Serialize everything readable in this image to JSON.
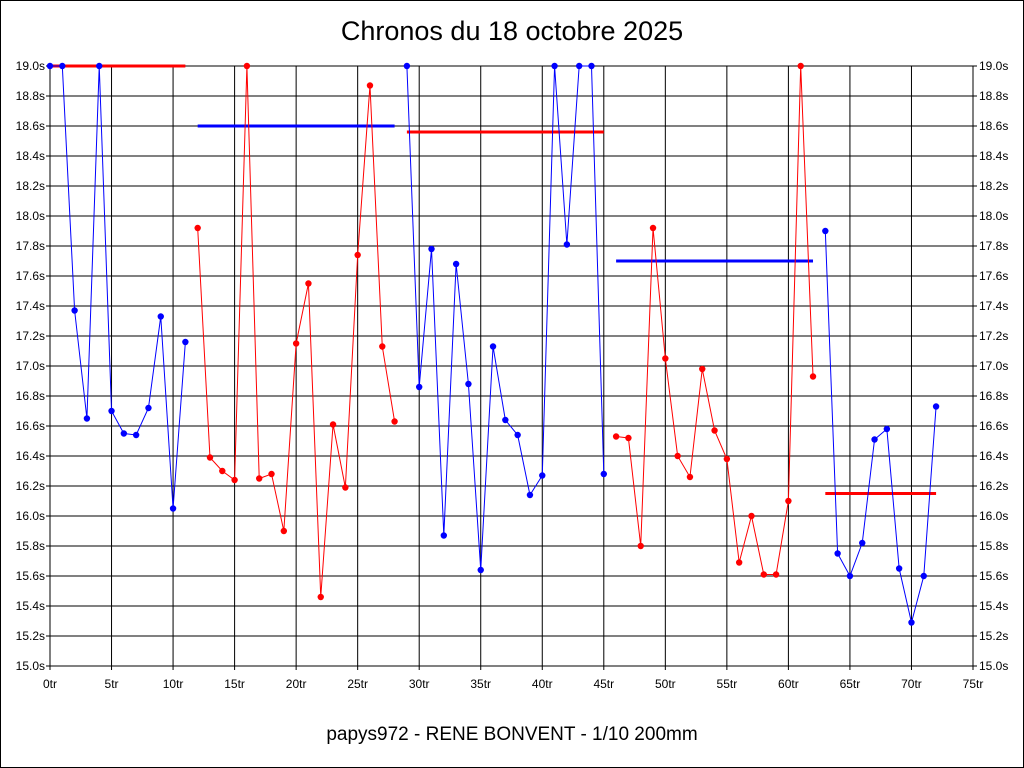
{
  "chart_data": {
    "type": "line",
    "title": "Chronos du 18 octobre 2025",
    "subtitle": "papys972 - RENE BONVENT - 1/10 200mm",
    "xlabel": "",
    "ylabel": "",
    "xlim": [
      0,
      75
    ],
    "ylim": [
      15.0,
      19.0
    ],
    "x_ticks": [
      0,
      5,
      10,
      15,
      20,
      25,
      30,
      35,
      40,
      45,
      50,
      55,
      60,
      65,
      70,
      75
    ],
    "x_tick_suffix": "tr",
    "y_ticks": [
      15.0,
      15.2,
      15.4,
      15.6,
      15.8,
      16.0,
      16.2,
      16.4,
      16.6,
      16.8,
      17.0,
      17.2,
      17.4,
      17.6,
      17.8,
      18.0,
      18.2,
      18.4,
      18.6,
      18.8,
      19.0
    ],
    "y_tick_suffix": "s",
    "y_axis_both_sides": true,
    "grid": true,
    "colors": {
      "blue": "#0000ff",
      "red": "#ff0000",
      "grid": "#000000"
    },
    "series": [
      {
        "color": "#0000ff",
        "x": [
          0,
          1,
          2,
          3,
          4,
          5,
          6,
          7,
          8,
          9,
          10,
          11
        ],
        "y": [
          19.0,
          19.0,
          17.37,
          16.65,
          19.0,
          16.7,
          16.55,
          16.54,
          16.72,
          17.33,
          16.05,
          17.16
        ]
      },
      {
        "color": "#ff0000",
        "x": [
          12,
          13,
          14,
          15,
          16,
          17,
          18,
          19,
          20,
          21,
          22,
          23,
          24,
          25,
          26,
          27,
          28
        ],
        "y": [
          17.92,
          16.39,
          16.3,
          16.24,
          19.0,
          16.25,
          16.28,
          15.9,
          17.15,
          17.55,
          15.46,
          16.61,
          16.19,
          17.74,
          18.87,
          17.13,
          16.63
        ]
      },
      {
        "color": "#0000ff",
        "x": [
          29,
          30,
          31,
          32,
          33,
          34,
          35,
          36,
          37,
          38,
          39,
          40,
          41,
          42,
          43,
          44,
          45
        ],
        "y": [
          19.0,
          16.86,
          17.78,
          15.87,
          17.68,
          16.88,
          15.64,
          17.13,
          16.64,
          16.54,
          16.14,
          16.27,
          19.0,
          17.81,
          19.0,
          19.0,
          16.28
        ]
      },
      {
        "color": "#ff0000",
        "x": [
          46,
          47,
          48,
          49,
          50,
          51,
          52,
          53,
          54,
          55,
          56,
          57,
          58,
          59,
          60,
          61,
          62
        ],
        "y": [
          16.53,
          16.52,
          15.8,
          17.92,
          17.05,
          16.4,
          16.26,
          16.98,
          16.57,
          16.38,
          15.69,
          16.0,
          15.61,
          15.61,
          16.1,
          19.0,
          16.93
        ]
      },
      {
        "color": "#0000ff",
        "x": [
          63,
          64,
          65,
          66,
          67,
          68,
          69,
          70,
          71,
          72
        ],
        "y": [
          17.9,
          15.75,
          15.6,
          15.82,
          16.51,
          16.58,
          15.65,
          15.29,
          15.6,
          16.73
        ]
      }
    ],
    "averages": [
      {
        "color": "#ff0000",
        "x": [
          0,
          11
        ],
        "y": 19.0
      },
      {
        "color": "#0000ff",
        "x": [
          12,
          28
        ],
        "y": 18.6
      },
      {
        "color": "#ff0000",
        "x": [
          29,
          45
        ],
        "y": 18.56
      },
      {
        "color": "#0000ff",
        "x": [
          46,
          62
        ],
        "y": 17.7
      },
      {
        "color": "#ff0000",
        "x": [
          63,
          72
        ],
        "y": 16.15
      }
    ]
  }
}
